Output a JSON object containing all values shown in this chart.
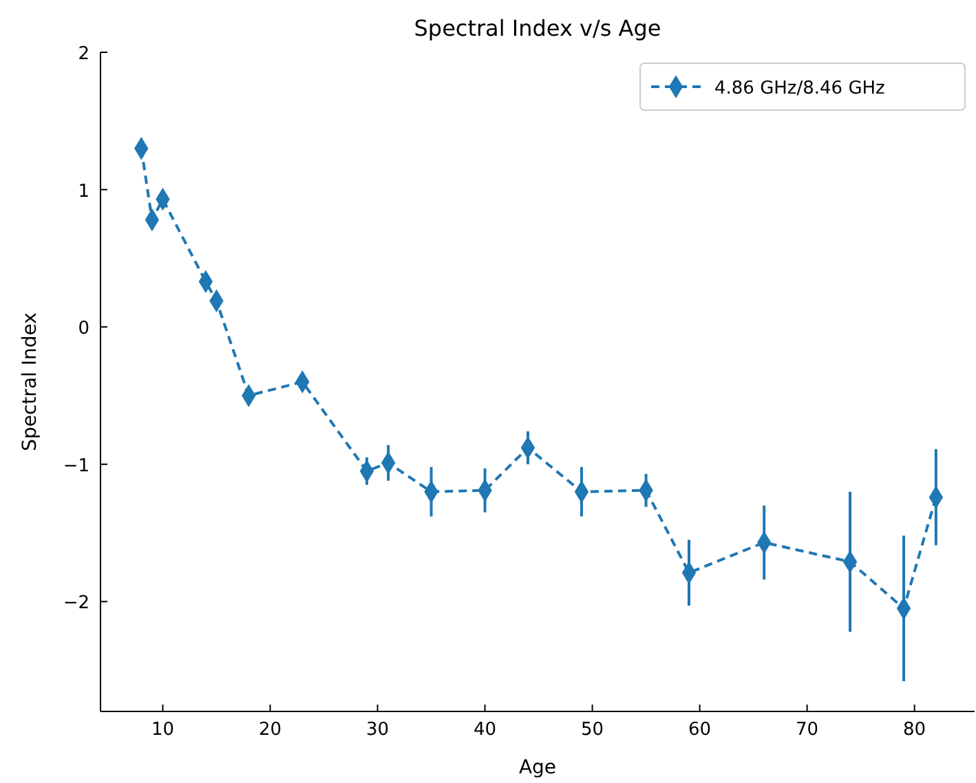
{
  "chart_data": {
    "type": "line",
    "title": "Spectral Index v/s Age",
    "xlabel": "Age",
    "ylabel": "Spectral Index",
    "x": [
      8,
      9,
      10,
      14,
      15,
      18,
      23,
      29,
      31,
      35,
      40,
      44,
      49,
      55,
      59,
      66,
      74,
      79,
      82
    ],
    "series": [
      {
        "name": "4.86 GHz/8.46 GHz",
        "color": "#1f77b4",
        "values": [
          1.3,
          0.78,
          0.93,
          0.33,
          0.19,
          -0.5,
          -0.4,
          -1.05,
          -0.99,
          -1.2,
          -1.19,
          -0.88,
          -1.2,
          -1.19,
          -1.79,
          -1.57,
          -1.71,
          -2.05,
          -1.24
        ],
        "errors": [
          0.05,
          0.05,
          0.05,
          0.05,
          0.05,
          0.05,
          0.05,
          0.1,
          0.13,
          0.18,
          0.16,
          0.12,
          0.18,
          0.12,
          0.24,
          0.27,
          0.51,
          0.53,
          0.35
        ]
      }
    ],
    "xlim": [
      4.2,
      85.6
    ],
    "ylim": [
      -2.8,
      2
    ],
    "xticks": [
      10,
      20,
      30,
      40,
      50,
      60,
      70,
      80
    ],
    "yticks": [
      -2,
      -1,
      0,
      1,
      2
    ],
    "marker": "diamond",
    "line_style": "dashed",
    "legend": "top right",
    "grid": false
  }
}
